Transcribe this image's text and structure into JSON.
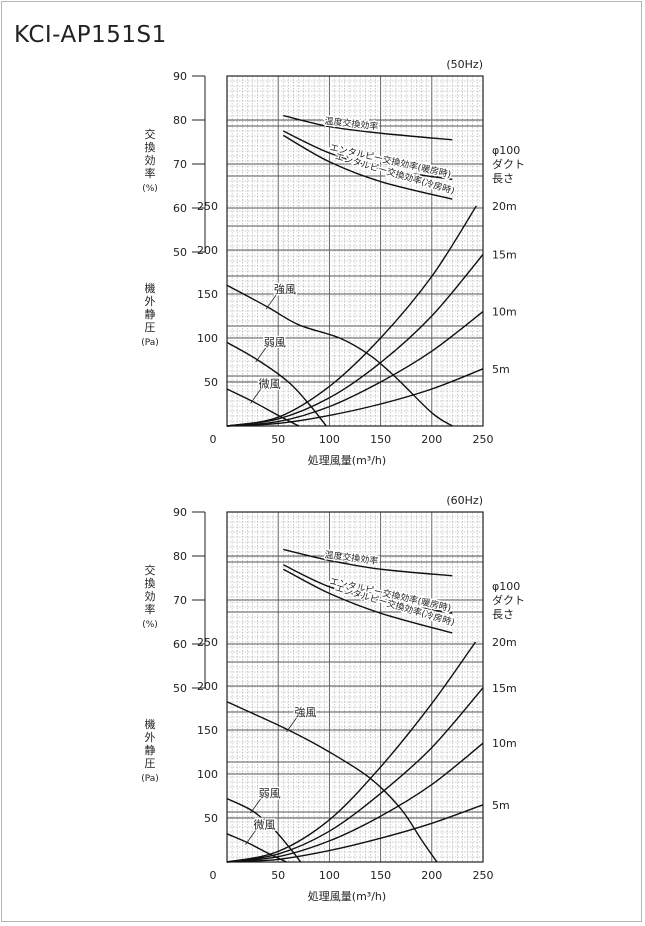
{
  "model": "KCI-AP151S1",
  "icons": [
    "chart-grid-icon"
  ],
  "chart_data": [
    {
      "type": "line",
      "title": "(50Hz)",
      "xlabel": "処理風量(m³/h)",
      "x_ticks": [
        "0",
        "50",
        "100",
        "150",
        "200",
        "250"
      ],
      "xlim": [
        0,
        250
      ],
      "efficiency_axis": {
        "label_chars": [
          "交",
          "換",
          "効",
          "率"
        ],
        "unit": "(%)",
        "ticks": [
          "90",
          "80",
          "70",
          "60",
          "50"
        ],
        "range": [
          50,
          90
        ]
      },
      "pressure_axis": {
        "label_chars": [
          "機",
          "外",
          "静",
          "圧"
        ],
        "unit": "(Pa)",
        "ticks": [
          "250",
          "200",
          "150",
          "100",
          "50"
        ],
        "range": [
          0,
          250
        ]
      },
      "duct_axis": {
        "label_lines": [
          "φ100",
          "ダクト",
          "長さ"
        ],
        "ticks": [
          "20m",
          "15m",
          "10m",
          "5m"
        ]
      },
      "grid": true,
      "efficiency_series": [
        {
          "name": "温度交換効率",
          "x": [
            55,
            100,
            150,
            220
          ],
          "y": [
            81,
            78.5,
            77,
            75.5
          ]
        },
        {
          "name": "エンタルピー交換効率(暖房時)",
          "x": [
            55,
            100,
            150,
            220
          ],
          "y": [
            77.5,
            72.5,
            69,
            66.5
          ]
        },
        {
          "name": "エンタルピー交換効率(冷房時)",
          "x": [
            55,
            100,
            150,
            220
          ],
          "y": [
            76.5,
            70.5,
            66,
            62
          ]
        }
      ],
      "fan_curves": [
        {
          "name": "強風",
          "x": [
            0,
            40,
            70,
            110,
            140,
            165,
            200,
            220
          ],
          "y": [
            160,
            135,
            115,
            100,
            80,
            55,
            15,
            0
          ]
        },
        {
          "name": "弱風",
          "x": [
            0,
            30,
            60,
            80,
            97
          ],
          "y": [
            95,
            75,
            50,
            25,
            0
          ]
        },
        {
          "name": "微風",
          "x": [
            0,
            25,
            50,
            70
          ],
          "y": [
            42,
            28,
            12,
            0
          ]
        }
      ],
      "duct_curves": [
        {
          "name": "20m",
          "x": [
            0,
            50,
            100,
            150,
            200,
            250
          ],
          "y": [
            0,
            10,
            45,
            100,
            170,
            262
          ]
        },
        {
          "name": "15m",
          "x": [
            0,
            50,
            100,
            150,
            200,
            250
          ],
          "y": [
            0,
            8,
            32,
            72,
            125,
            195
          ]
        },
        {
          "name": "10m",
          "x": [
            0,
            50,
            100,
            150,
            200,
            250
          ],
          "y": [
            0,
            5,
            22,
            50,
            85,
            130
          ]
        },
        {
          "name": "5m",
          "x": [
            0,
            50,
            100,
            150,
            200,
            250
          ],
          "y": [
            0,
            3,
            12,
            25,
            42,
            65
          ]
        }
      ]
    },
    {
      "type": "line",
      "title": "(60Hz)",
      "xlabel": "処理風量(m³/h)",
      "x_ticks": [
        "0",
        "50",
        "100",
        "150",
        "200",
        "250"
      ],
      "xlim": [
        0,
        250
      ],
      "efficiency_axis": {
        "label_chars": [
          "交",
          "換",
          "効",
          "率"
        ],
        "unit": "(%)",
        "ticks": [
          "90",
          "80",
          "70",
          "60",
          "50"
        ],
        "range": [
          50,
          90
        ]
      },
      "pressure_axis": {
        "label_chars": [
          "機",
          "外",
          "静",
          "圧"
        ],
        "unit": "(Pa)",
        "ticks": [
          "250",
          "200",
          "150",
          "100",
          "50"
        ],
        "range": [
          0,
          250
        ]
      },
      "duct_axis": {
        "label_lines": [
          "φ100",
          "ダクト",
          "長さ"
        ],
        "ticks": [
          "20m",
          "15m",
          "10m",
          "5m"
        ]
      },
      "grid": true,
      "efficiency_series": [
        {
          "name": "温度交換効率",
          "x": [
            55,
            100,
            150,
            220
          ],
          "y": [
            81.5,
            79,
            77,
            75.5
          ]
        },
        {
          "name": "エンタルピー交換効率(暖房時)",
          "x": [
            55,
            100,
            150,
            220
          ],
          "y": [
            78,
            73,
            70,
            67
          ]
        },
        {
          "name": "エンタルピー交換効率(冷房時)",
          "x": [
            55,
            100,
            150,
            220
          ],
          "y": [
            77,
            71.5,
            67,
            62.5
          ]
        }
      ],
      "fan_curves": [
        {
          "name": "強風",
          "x": [
            0,
            60,
            100,
            140,
            170,
            190,
            205
          ],
          "y": [
            182,
            150,
            125,
            95,
            60,
            25,
            0
          ]
        },
        {
          "name": "弱風",
          "x": [
            0,
            25,
            45,
            60,
            72
          ],
          "y": [
            72,
            58,
            38,
            18,
            0
          ]
        },
        {
          "name": "微風",
          "x": [
            0,
            20,
            40,
            58
          ],
          "y": [
            32,
            22,
            10,
            0
          ]
        }
      ],
      "duct_curves": [
        {
          "name": "20m",
          "x": [
            0,
            50,
            100,
            150,
            200,
            250
          ],
          "y": [
            0,
            12,
            48,
            108,
            180,
            262
          ]
        },
        {
          "name": "15m",
          "x": [
            0,
            50,
            100,
            150,
            200,
            250
          ],
          "y": [
            0,
            9,
            35,
            78,
            130,
            198
          ]
        },
        {
          "name": "10m",
          "x": [
            0,
            50,
            100,
            150,
            200,
            250
          ],
          "y": [
            0,
            6,
            24,
            52,
            88,
            135
          ]
        },
        {
          "name": "5m",
          "x": [
            0,
            50,
            100,
            150,
            200,
            250
          ],
          "y": [
            0,
            3,
            13,
            27,
            44,
            65
          ]
        }
      ]
    }
  ]
}
